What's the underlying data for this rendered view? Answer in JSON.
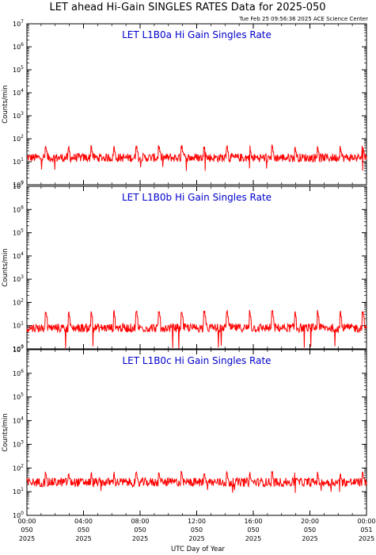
{
  "header": {
    "title": "LET ahead Hi-Gain SINGLES RATES Data for 2025-050",
    "timestamp": "Tue Feb 25 09:56:36 2025 ACE Science Center"
  },
  "colors": {
    "series": "#ff0000",
    "panel_label": "#0000cc",
    "axis": "#000000"
  },
  "chart_data": [
    {
      "type": "line",
      "title": "LET L1B0a Hi Gain Singles Rate",
      "ylabel": "Counts/min",
      "yscale": "log",
      "ylim": [
        1,
        10000000
      ],
      "ytick_labels": [
        {
          "base": "10",
          "exp": "0"
        },
        {
          "base": "10",
          "exp": "1"
        },
        {
          "base": "10",
          "exp": "2"
        },
        {
          "base": "10",
          "exp": "3"
        },
        {
          "base": "10",
          "exp": "4"
        },
        {
          "base": "10",
          "exp": "5"
        },
        {
          "base": "10",
          "exp": "6"
        },
        {
          "base": "10",
          "exp": "7"
        }
      ],
      "series": [
        {
          "baseline": 15,
          "spike_level": 45,
          "min": 4
        }
      ]
    },
    {
      "type": "line",
      "title": "LET L1B0b Hi Gain Singles Rate",
      "ylabel": "Counts/min",
      "yscale": "log",
      "ylim": [
        1,
        10000000
      ],
      "ytick_labels": [
        {
          "base": "10",
          "exp": "0"
        },
        {
          "base": "10",
          "exp": "1"
        },
        {
          "base": "10",
          "exp": "2"
        },
        {
          "base": "10",
          "exp": "3"
        },
        {
          "base": "10",
          "exp": "4"
        },
        {
          "base": "10",
          "exp": "5"
        },
        {
          "base": "10",
          "exp": "6"
        },
        {
          "base": "10",
          "exp": "7"
        }
      ],
      "series": [
        {
          "baseline": 8,
          "spike_level": 40,
          "min": 1
        }
      ]
    },
    {
      "type": "line",
      "title": "LET L1B0c Hi Gain Singles Rate",
      "ylabel": "Counts/min",
      "yscale": "log",
      "ylim": [
        1,
        10000000
      ],
      "ytick_labels": [
        {
          "base": "10",
          "exp": "0"
        },
        {
          "base": "10",
          "exp": "1"
        },
        {
          "base": "10",
          "exp": "2"
        },
        {
          "base": "10",
          "exp": "3"
        },
        {
          "base": "10",
          "exp": "4"
        },
        {
          "base": "10",
          "exp": "5"
        },
        {
          "base": "10",
          "exp": "6"
        },
        {
          "base": "10",
          "exp": "7"
        }
      ],
      "series": [
        {
          "baseline": 25,
          "spike_level": 60,
          "min": 8
        }
      ]
    }
  ],
  "xaxis": {
    "xlabel": "UTC Day of Year",
    "range_hours": [
      0,
      24
    ],
    "ticks": [
      {
        "hour": 0,
        "time": "00:00",
        "doy": "050",
        "year": "2025"
      },
      {
        "hour": 4,
        "time": "04:00",
        "doy": "050",
        "year": "2025"
      },
      {
        "hour": 8,
        "time": "08:00",
        "doy": "050",
        "year": "2025"
      },
      {
        "hour": 12,
        "time": "12:00",
        "doy": "050",
        "year": "2025"
      },
      {
        "hour": 16,
        "time": "16:00",
        "doy": "050",
        "year": "2025"
      },
      {
        "hour": 20,
        "time": "20:00",
        "doy": "050",
        "year": "2025"
      },
      {
        "hour": 24,
        "time": "00:00",
        "doy": "051",
        "year": "2025"
      }
    ]
  }
}
